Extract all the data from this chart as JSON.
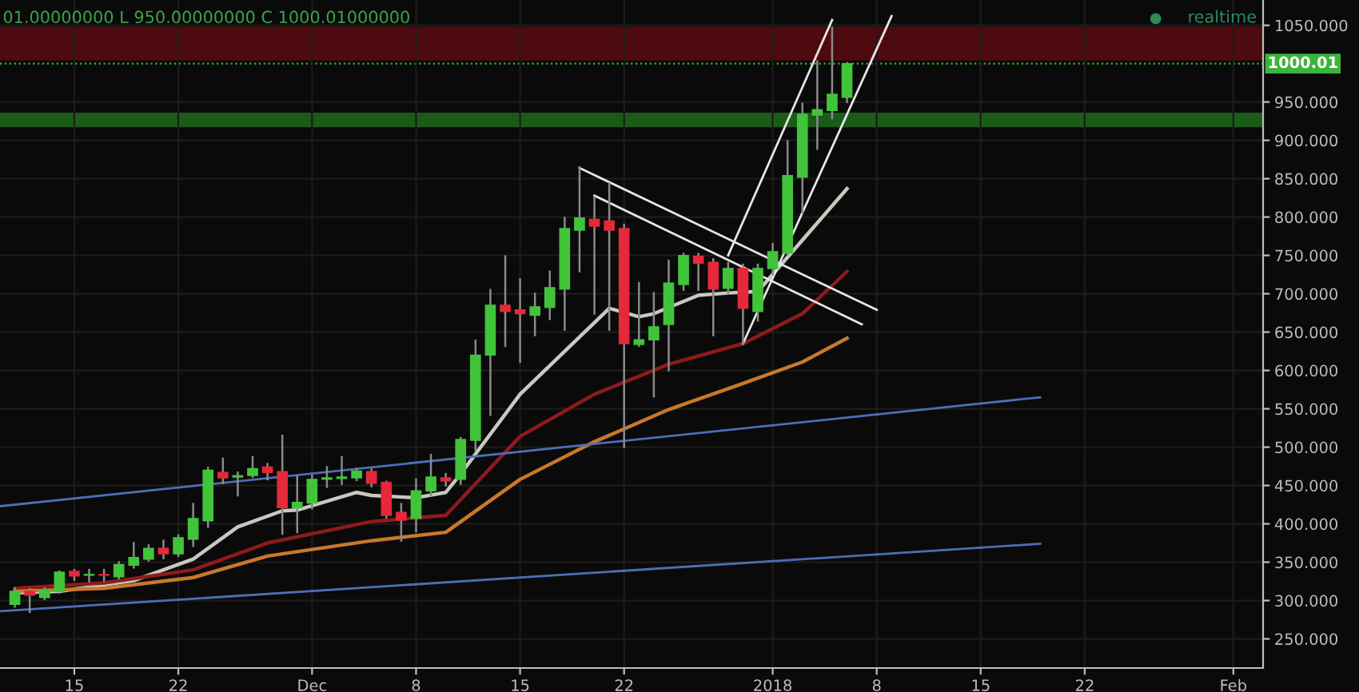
{
  "chart_data": {
    "type": "candlestick",
    "x": [
      "2017-11-11",
      "2017-11-12",
      "2017-11-13",
      "2017-11-14",
      "2017-11-15",
      "2017-11-16",
      "2017-11-17",
      "2017-11-18",
      "2017-11-19",
      "2017-11-20",
      "2017-11-21",
      "2017-11-22",
      "2017-11-23",
      "2017-11-24",
      "2017-11-25",
      "2017-11-26",
      "2017-11-27",
      "2017-11-28",
      "2017-11-29",
      "2017-11-30",
      "2017-12-01",
      "2017-12-02",
      "2017-12-03",
      "2017-12-04",
      "2017-12-05",
      "2017-12-06",
      "2017-12-07",
      "2017-12-08",
      "2017-12-09",
      "2017-12-10",
      "2017-12-11",
      "2017-12-12",
      "2017-12-13",
      "2017-12-14",
      "2017-12-15",
      "2017-12-16",
      "2017-12-17",
      "2017-12-18",
      "2017-12-19",
      "2017-12-20",
      "2017-12-21",
      "2017-12-22",
      "2017-12-23",
      "2017-12-24",
      "2017-12-25",
      "2017-12-26",
      "2017-12-27",
      "2017-12-28",
      "2017-12-29",
      "2017-12-30",
      "2017-12-31",
      "2018-01-01",
      "2018-01-02",
      "2018-01-03",
      "2018-01-04",
      "2018-01-05",
      "2018-01-06"
    ],
    "ohlc": [
      [
        295,
        316,
        292,
        312
      ],
      [
        312,
        315,
        285,
        307
      ],
      [
        304,
        316,
        302,
        314
      ],
      [
        312,
        338,
        310,
        337
      ],
      [
        338,
        340,
        327,
        332
      ],
      [
        333,
        340,
        325,
        334
      ],
      [
        334,
        340,
        326,
        333
      ],
      [
        331,
        350,
        329,
        347
      ],
      [
        346,
        375,
        343,
        356
      ],
      [
        354,
        372,
        352,
        368
      ],
      [
        368,
        378,
        355,
        361
      ],
      [
        361,
        385,
        358,
        382
      ],
      [
        380,
        426,
        371,
        407
      ],
      [
        404,
        473,
        396,
        470
      ],
      [
        467,
        485,
        453,
        460
      ],
      [
        461,
        467,
        437,
        463
      ],
      [
        463,
        487,
        461,
        472
      ],
      [
        474,
        478,
        458,
        467
      ],
      [
        468,
        515,
        387,
        421
      ],
      [
        421,
        462,
        389,
        428
      ],
      [
        427,
        463,
        420,
        458
      ],
      [
        458,
        474,
        448,
        460
      ],
      [
        459,
        487,
        452,
        461
      ],
      [
        460,
        472,
        457,
        469
      ],
      [
        468,
        471,
        449,
        453
      ],
      [
        454,
        455,
        408,
        411
      ],
      [
        415,
        426,
        378,
        405
      ],
      [
        407,
        458,
        390,
        443
      ],
      [
        443,
        490,
        437,
        461
      ],
      [
        460,
        465,
        450,
        456
      ],
      [
        458,
        512,
        452,
        510
      ],
      [
        509,
        639,
        496,
        620
      ],
      [
        620,
        705,
        542,
        685
      ],
      [
        685,
        749,
        632,
        677
      ],
      [
        679,
        719,
        611,
        674
      ],
      [
        672,
        700,
        646,
        683
      ],
      [
        682,
        729,
        667,
        708
      ],
      [
        706,
        799,
        653,
        785
      ],
      [
        783,
        865,
        729,
        799
      ],
      [
        797,
        826,
        674,
        788
      ],
      [
        795,
        844,
        653,
        783
      ],
      [
        785,
        790,
        500,
        635
      ],
      [
        634,
        714,
        632,
        640
      ],
      [
        640,
        701,
        566,
        657
      ],
      [
        660,
        743,
        600,
        714
      ],
      [
        712,
        752,
        705,
        750
      ],
      [
        749,
        752,
        705,
        740
      ],
      [
        741,
        745,
        646,
        706
      ],
      [
        707,
        740,
        700,
        733
      ],
      [
        733,
        738,
        635,
        681
      ],
      [
        677,
        738,
        665,
        733
      ],
      [
        733,
        765,
        725,
        755
      ],
      [
        753,
        899,
        751,
        854
      ],
      [
        852,
        948,
        806,
        934
      ],
      [
        933,
        1003,
        889,
        940
      ],
      [
        939,
        1047,
        929,
        960
      ],
      [
        956,
        1001,
        950,
        1000.01
      ]
    ],
    "colors": [
      "#41c43a",
      "#e5283a",
      "#41c43a",
      "#41c43a",
      "#e5283a",
      "#41c43a",
      "#e5283a",
      "#41c43a",
      "#41c43a",
      "#41c43a",
      "#e5283a",
      "#41c43a",
      "#41c43a",
      "#41c43a",
      "#e5283a",
      "#41c43a",
      "#41c43a",
      "#e5283a",
      "#e5283a",
      "#41c43a",
      "#41c43a",
      "#41c43a",
      "#41c43a",
      "#41c43a",
      "#e5283a",
      "#e5283a",
      "#e5283a",
      "#41c43a",
      "#41c43a",
      "#e5283a",
      "#41c43a",
      "#41c43a",
      "#41c43a",
      "#e5283a",
      "#e5283a",
      "#41c43a",
      "#41c43a",
      "#41c43a",
      "#41c43a",
      "#e5283a",
      "#e5283a",
      "#e5283a",
      "#41c43a",
      "#41c43a",
      "#41c43a",
      "#41c43a",
      "#e5283a",
      "#e5283a",
      "#41c43a",
      "#e5283a",
      "#41c43a",
      "#41c43a",
      "#41c43a",
      "#41c43a",
      "#41c43a",
      "#41c43a",
      "#41c43a"
    ],
    "series": [
      {
        "type": "line",
        "color": "#c9c9bf",
        "x": [
          "2017-11-11",
          "2017-11-14",
          "2017-11-19",
          "2017-11-23",
          "2017-11-26",
          "2017-11-29",
          "2017-11-30",
          "2017-12-04",
          "2017-12-05",
          "2017-12-08",
          "2017-12-10",
          "2017-12-11",
          "2017-12-15",
          "2017-12-18",
          "2017-12-21",
          "2017-12-23",
          "2017-12-24",
          "2017-12-27",
          "2017-12-29",
          "2017-12-31",
          "2018-01-06"
        ],
        "values": [
          310,
          312,
          326,
          354,
          396,
          417,
          418,
          441,
          437,
          434,
          441,
          465,
          569,
          625,
          681,
          670,
          674,
          698,
          701,
          703,
          837
        ]
      },
      {
        "type": "line",
        "color": "#8e1a1c",
        "x": [
          "2017-11-11",
          "2017-11-17",
          "2017-11-23",
          "2017-11-28",
          "2017-12-05",
          "2017-12-10",
          "2017-12-15",
          "2017-12-20",
          "2017-12-25",
          "2017-12-30",
          "2018-01-03",
          "2018-01-06"
        ],
        "values": [
          316,
          323,
          340,
          375,
          403,
          411,
          514,
          569,
          608,
          635,
          674,
          729
        ]
      },
      {
        "type": "line",
        "color": "#c8782c",
        "x": [
          "2017-11-11",
          "2017-11-17",
          "2017-11-23",
          "2017-11-28",
          "2017-12-05",
          "2017-12-10",
          "2017-12-15",
          "2017-12-20",
          "2017-12-25",
          "2017-12-30",
          "2018-01-03",
          "2018-01-06"
        ],
        "values": [
          312,
          316,
          330,
          358,
          378,
          389,
          458,
          507,
          549,
          583,
          611,
          642
        ]
      },
      {
        "type": "line",
        "color": "#4a6fb5",
        "x": [
          "2017-11-10",
          "2018-01-19"
        ],
        "values": [
          423,
          565
        ]
      },
      {
        "type": "line",
        "color": "#4a6fb5",
        "x": [
          "2017-11-10",
          "2018-01-19"
        ],
        "values": [
          286,
          374
        ]
      },
      {
        "type": "line",
        "color": "#e6e6e6",
        "x": [
          "2017-12-19",
          "2018-01-08"
        ],
        "values": [
          864,
          679
        ]
      },
      {
        "type": "line",
        "color": "#e6e6e6",
        "x": [
          "2017-12-20",
          "2018-01-07"
        ],
        "values": [
          828,
          660
        ]
      },
      {
        "type": "line",
        "color": "#e6e6e6",
        "x": [
          "2017-12-29",
          "2018-01-05"
        ],
        "values": [
          750,
          1057
        ]
      },
      {
        "type": "line",
        "color": "#e6e6e6",
        "x": [
          "2017-12-30",
          "2018-01-09"
        ],
        "values": [
          635,
          1062
        ]
      }
    ],
    "bands": [
      {
        "axis": "y",
        "from": 1004,
        "to": 1048,
        "color": "#5a0c10"
      },
      {
        "axis": "y",
        "from": 917,
        "to": 936,
        "color": "#1d6a1d"
      }
    ],
    "ref_lines": [
      {
        "axis": "y",
        "value": 1000.01,
        "label": "1000.01",
        "color": "#3cb43c"
      }
    ],
    "annotations": [
      "01.00000000 L 950.00000000 C 1000.01000000",
      "realtime"
    ],
    "xlim": [
      "2017-11-10",
      "2018-02-03"
    ],
    "xticks": [
      {
        "value": "2017-11-15",
        "label": "15"
      },
      {
        "value": "2017-11-22",
        "label": "22"
      },
      {
        "value": "2017-12-01",
        "label": "Dec"
      },
      {
        "value": "2017-12-08",
        "label": "8"
      },
      {
        "value": "2017-12-15",
        "label": "15"
      },
      {
        "value": "2017-12-22",
        "label": "22"
      },
      {
        "value": "2018-01-01",
        "label": "2018"
      },
      {
        "value": "2018-01-08",
        "label": "8"
      },
      {
        "value": "2018-01-15",
        "label": "15"
      },
      {
        "value": "2018-01-22",
        "label": "22"
      },
      {
        "value": "2018-02-01",
        "label": "Feb"
      }
    ],
    "ylim": [
      212,
      1083
    ],
    "yticks": [
      {
        "value": 250,
        "label": "250.000"
      },
      {
        "value": 300,
        "label": "300.000"
      },
      {
        "value": 350,
        "label": "350.000"
      },
      {
        "value": 400,
        "label": "400.000"
      },
      {
        "value": 450,
        "label": "450.000"
      },
      {
        "value": 500,
        "label": "500.000"
      },
      {
        "value": 550,
        "label": "550.000"
      },
      {
        "value": 600,
        "label": "600.000"
      },
      {
        "value": 650,
        "label": "650.000"
      },
      {
        "value": 700,
        "label": "700.000"
      },
      {
        "value": 750,
        "label": "750.000"
      },
      {
        "value": 800,
        "label": "800.000"
      },
      {
        "value": 850,
        "label": "850.000"
      },
      {
        "value": 900,
        "label": "900.000"
      },
      {
        "value": 950,
        "label": "950.000"
      },
      {
        "value": 1050,
        "label": "1050.000"
      }
    ],
    "grid": true,
    "legend": false
  }
}
